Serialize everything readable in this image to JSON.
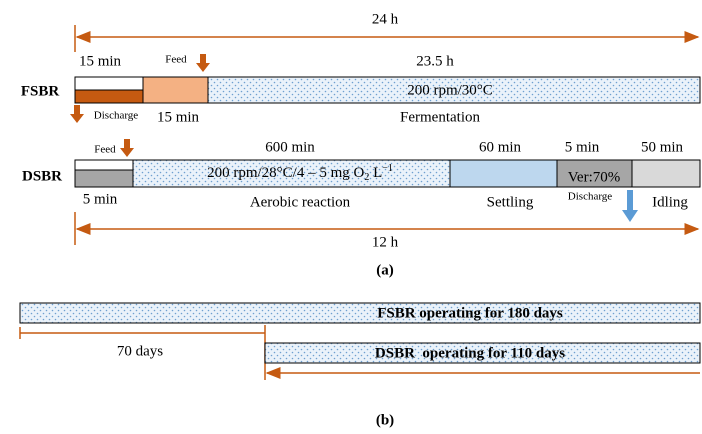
{
  "panel_a": {
    "top_duration": "24 h",
    "fsbr": {
      "label": "FSBR",
      "phase1_time": "15 min",
      "feed": "Feed",
      "phase3_time": "23.5 h",
      "condition": "200 rpm/30°C",
      "discharge": "Discharge",
      "phase2_time": "15 min",
      "phase3_name": "Fermentation"
    },
    "dsbr": {
      "label": "DSBR",
      "feed": "Feed",
      "aerobic_time": "600 min",
      "settling_time": "60 min",
      "discharge_time": "5 min",
      "idling_time": "50 min",
      "condition_parts": [
        "200 rpm/28°C/4 – 5 mg O",
        "2",
        " L",
        "−1"
      ],
      "discharge_ratio": "Ver:70%",
      "feed_time": "5 min",
      "aerobic_name": "Aerobic reaction",
      "settling_name": "Settling",
      "discharge": "Discharge",
      "idling_name": "Idling"
    },
    "bottom_duration": "12 h",
    "caption": "(a)"
  },
  "panel_b": {
    "fsbr_bar": "FSBR operating for 180 days",
    "gap": "70 days",
    "dsbr_bar": "DSBR  operating for 110 days",
    "caption": "(b)"
  }
}
